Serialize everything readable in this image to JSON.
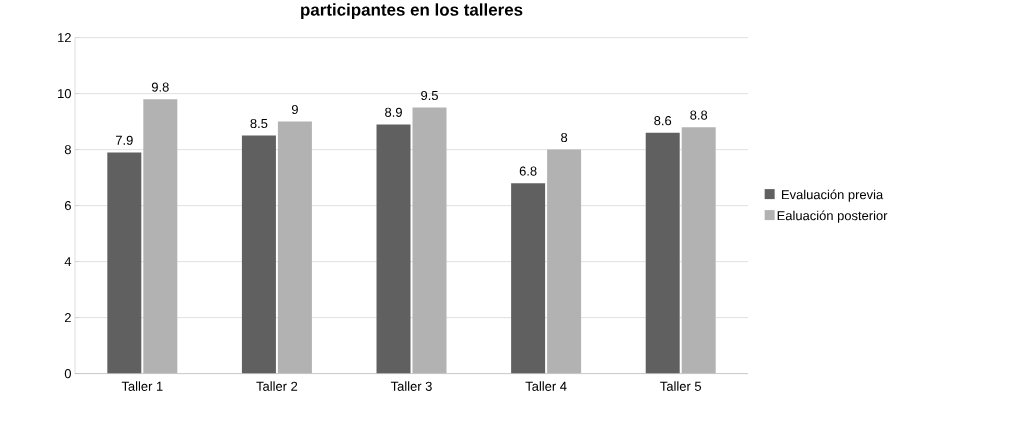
{
  "chart_data": {
    "type": "bar",
    "title": "participantes en los talleres",
    "categories": [
      "Taller 1",
      "Taller 2",
      "Taller 3",
      "Taller 4",
      "Taller 5"
    ],
    "series": [
      {
        "name": "Evaluación previa",
        "color": "#606060",
        "values": [
          7.9,
          8.5,
          8.9,
          6.8,
          8.6
        ]
      },
      {
        "name": "Ealuación posterior",
        "color": "#b2b2b2",
        "values": [
          9.8,
          9,
          9.5,
          8,
          8.8
        ]
      }
    ],
    "ylim": [
      0,
      12
    ],
    "yticks": [
      0,
      2,
      4,
      6,
      8,
      10,
      12
    ],
    "grid": "y",
    "legend": "right",
    "data_labels": true
  }
}
